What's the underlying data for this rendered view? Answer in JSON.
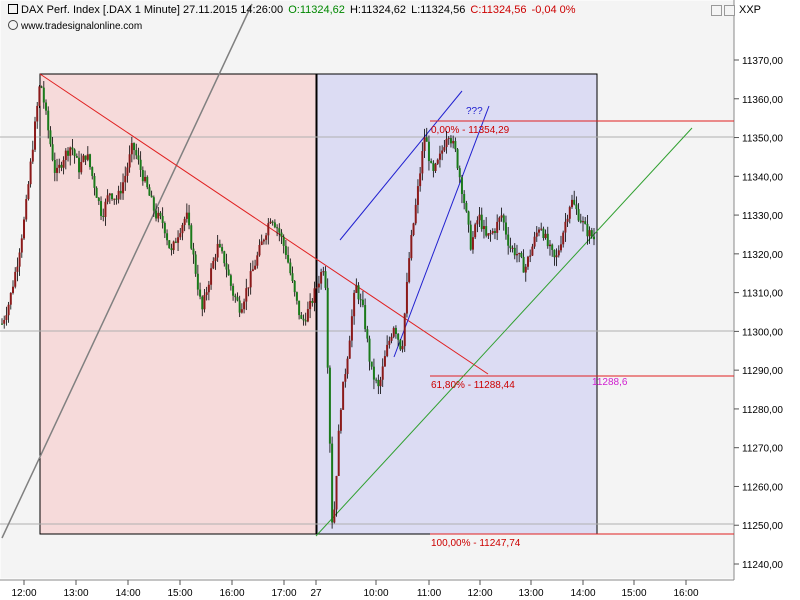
{
  "header": {
    "title": "DAX Perf. Index [.DAX  1 Minute] 27.11.2015 14:26:00",
    "open_label": "O:11324,62",
    "high_label": "H:11324,62",
    "low_label": "L:11324,56",
    "close_label": "C:11324,56",
    "change_label": "-0,04 0%",
    "website": "www.tradesignalonline.com",
    "axis_name": "XXP"
  },
  "colors": {
    "bull_body": "#8b1a1a",
    "bear_body": "#1a7a1a",
    "left_zone": "#f6dada",
    "right_zone": "#dcdcf3",
    "red_line": "#e02020",
    "blue_line": "#2020d0",
    "green_line": "#30a030",
    "gray_line": "#808080"
  },
  "chart_data": {
    "type": "candlestick",
    "title": "DAX Perf. Index [.DAX  1 Minute] 27.11.2015 14:26:00",
    "x_tick_labels": [
      "12:00",
      "13:00",
      "14:00",
      "15:00",
      "16:00",
      "17:00",
      "27",
      "10:00",
      "11:00",
      "12:00",
      "13:00",
      "14:00",
      "15:00",
      "16:00"
    ],
    "y_tick_labels": [
      "11240,00",
      "11250,00",
      "11260,00",
      "11270,00",
      "11280,00",
      "11290,00",
      "11300,00",
      "11310,00",
      "11320,00",
      "11330,00",
      "11340,00",
      "11350,00",
      "11360,00",
      "11370,00"
    ],
    "ylim": [
      11236,
      11378
    ],
    "grid": false,
    "fib_levels": [
      {
        "label": "0,00% - 11354,29",
        "value": 11354.29
      },
      {
        "label": "61,80% - 11288,44",
        "value": 11288.44
      },
      {
        "label": "100,00% - 11247,74",
        "value": 11247.74
      }
    ],
    "annotations": [
      {
        "text": "???"
      },
      {
        "text": "11288,6",
        "value": 11288.6
      }
    ],
    "price_path": [
      11302,
      11308,
      11318,
      11330,
      11348,
      11365,
      11352,
      11340,
      11345,
      11348,
      11342,
      11346,
      11338,
      11330,
      11336,
      11334,
      11340,
      11348,
      11342,
      11336,
      11330,
      11328,
      11320,
      11326,
      11330,
      11318,
      11305,
      11314,
      11322,
      11318,
      11310,
      11306,
      11312,
      11318,
      11324,
      11330,
      11326,
      11320,
      11310,
      11302,
      11306,
      11312,
      11318,
      11247,
      11280,
      11295,
      11312,
      11305,
      11290,
      11285,
      11295,
      11302,
      11295,
      11320,
      11335,
      11351,
      11340,
      11345,
      11352,
      11346,
      11335,
      11322,
      11330,
      11324,
      11326,
      11330,
      11322,
      11320,
      11316,
      11322,
      11328,
      11322,
      11318,
      11326,
      11334,
      11330,
      11326,
      11324
    ]
  }
}
